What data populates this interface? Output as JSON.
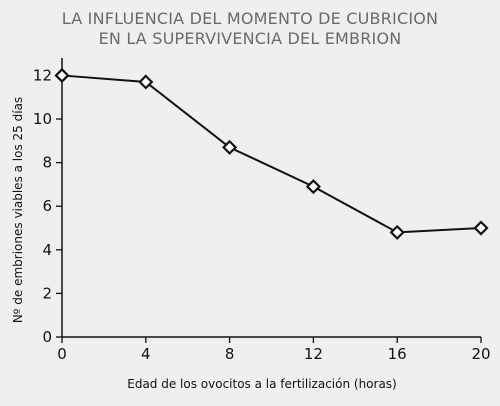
{
  "chart_data": {
    "type": "line",
    "title_lines": [
      "LA INFLUENCIA DEL MOMENTO DE CUBRICION",
      "EN LA SUPERVIVENCIA DEL EMBRION"
    ],
    "xlabel": "Edad de los ovocitos a la fertilización (horas)",
    "ylabel": "Nº de embriones viables a los 25 días",
    "x_ticks": [
      0,
      4,
      8,
      12,
      16,
      20
    ],
    "y_ticks": [
      0,
      2,
      4,
      6,
      8,
      10,
      12
    ],
    "xlim": [
      0,
      20
    ],
    "ylim": [
      0,
      12.8
    ],
    "grid": false,
    "marker": "diamond",
    "series": [
      {
        "x": [
          0,
          4,
          8,
          12,
          16,
          20
        ],
        "y": [
          12.0,
          11.7,
          8.7,
          6.9,
          4.8,
          5.0
        ]
      }
    ],
    "colors": {
      "line": "#111111",
      "marker_fill": "#ffffff",
      "title": "#6a6a6a",
      "background": "#efefef"
    }
  }
}
